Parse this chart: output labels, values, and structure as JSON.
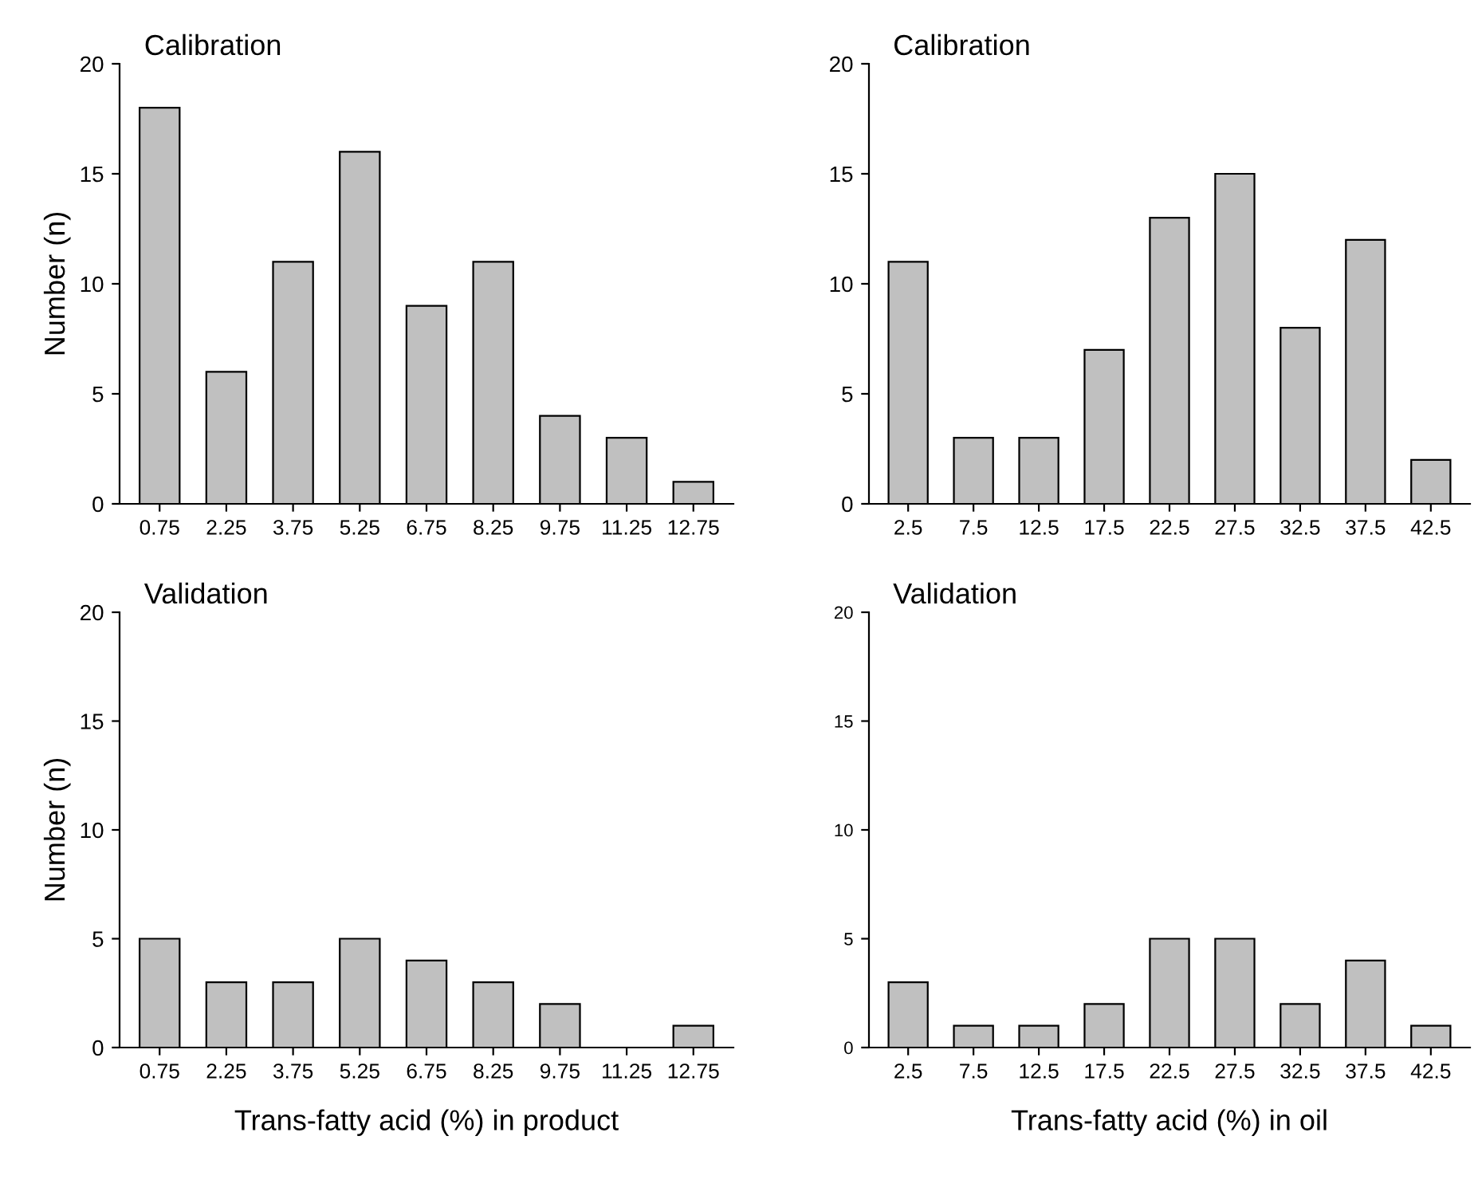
{
  "chart_data": [
    {
      "type": "bar",
      "title": "Calibration",
      "ylabel": "Number (n)",
      "categories": [
        "0.75",
        "2.25",
        "3.75",
        "5.25",
        "6.75",
        "8.25",
        "9.75",
        "11.25",
        "12.75"
      ],
      "values": [
        18,
        6,
        11,
        16,
        9,
        11,
        4,
        3,
        1
      ],
      "color": "#c0c0c0",
      "ylim": [
        0,
        20
      ],
      "yticks": [
        0,
        5,
        10,
        15,
        20
      ],
      "grid": false,
      "legend": false
    },
    {
      "type": "bar",
      "title": "Calibration",
      "categories": [
        "2.5",
        "7.5",
        "12.5",
        "17.5",
        "22.5",
        "27.5",
        "32.5",
        "37.5",
        "42.5"
      ],
      "values": [
        11,
        3,
        3,
        7,
        13,
        15,
        8,
        12,
        2
      ],
      "color": "#c0c0c0",
      "ylim": [
        0,
        20
      ],
      "yticks": [
        0,
        5,
        10,
        15,
        20
      ],
      "grid": false,
      "legend": false
    },
    {
      "type": "bar",
      "title": "Validation",
      "ylabel": "Number (n)",
      "xlabel": "Trans-fatty acid (%) in product",
      "categories": [
        "0.75",
        "2.25",
        "3.75",
        "5.25",
        "6.75",
        "8.25",
        "9.75",
        "11.25",
        "12.75"
      ],
      "values": [
        5,
        3,
        3,
        5,
        4,
        3,
        2,
        null,
        1
      ],
      "color": "#c0c0c0",
      "ylim": [
        0,
        20
      ],
      "yticks": [
        0,
        5,
        10,
        15,
        20
      ],
      "grid": false,
      "legend": false
    },
    {
      "type": "bar",
      "title": "Validation",
      "xlabel": "Trans-fatty acid (%) in oil",
      "categories": [
        "2.5",
        "7.5",
        "12.5",
        "17.5",
        "22.5",
        "27.5",
        "32.5",
        "37.5",
        "42.5"
      ],
      "values": [
        3,
        1,
        1,
        2,
        5,
        5,
        2,
        4,
        1
      ],
      "color": "#c0c0c0",
      "ylim": [
        0,
        20
      ],
      "yticks": [
        0,
        5,
        10,
        15,
        20
      ],
      "grid": false,
      "legend": false
    }
  ]
}
